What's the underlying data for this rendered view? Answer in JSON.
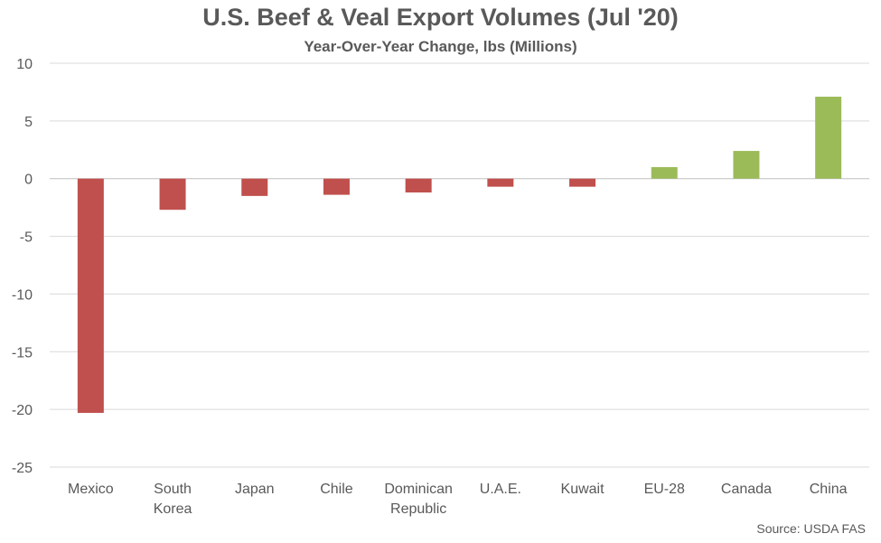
{
  "chart_data": {
    "type": "bar",
    "title": "U.S. Beef & Veal Export Volumes (Jul '20)",
    "subtitle": "Year-Over-Year Change, lbs (Millions)",
    "source": "Source: USDA FAS",
    "categories": [
      "Mexico",
      "South Korea",
      "Japan",
      "Chile",
      "Dominican Republic",
      "U.A.E.",
      "Kuwait",
      "EU-28",
      "Canada",
      "China"
    ],
    "category_lines": [
      [
        "Mexico"
      ],
      [
        "South",
        "Korea"
      ],
      [
        "Japan"
      ],
      [
        "Chile"
      ],
      [
        "Dominican",
        "Republic"
      ],
      [
        "U.A.E."
      ],
      [
        "Kuwait"
      ],
      [
        "EU-28"
      ],
      [
        "Canada"
      ],
      [
        "China"
      ]
    ],
    "values": [
      -20.3,
      -2.7,
      -1.5,
      -1.4,
      -1.2,
      -0.7,
      -0.7,
      1.0,
      2.4,
      7.1
    ],
    "ylim": [
      -25,
      10
    ],
    "yticks": [
      10,
      5,
      0,
      -5,
      -10,
      -15,
      -20,
      -25
    ],
    "grid": true,
    "colors": {
      "negative": "#c0504d",
      "positive": "#9bbb59",
      "grid": "#d9d9d9",
      "axis": "#bfbfbf"
    }
  }
}
